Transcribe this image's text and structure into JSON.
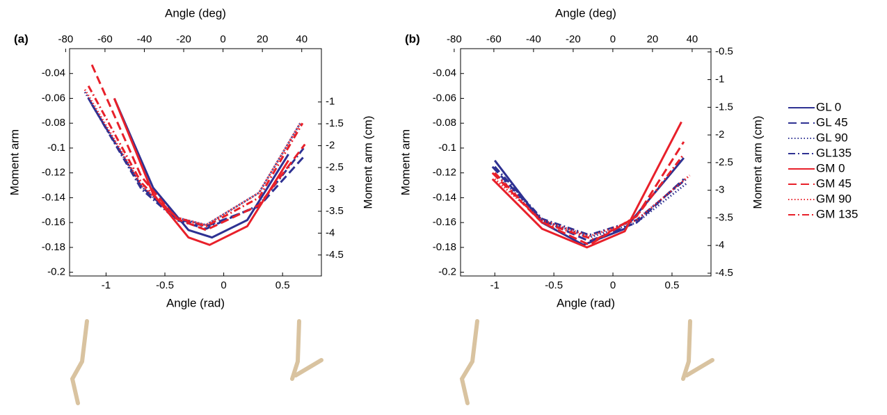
{
  "chart_data": [
    {
      "type": "line",
      "panel_label": "(a)",
      "xlabel": "Angle (rad)",
      "x2label": "Angle (deg)",
      "ylabel": "Moment arm",
      "y2label": "Moment arm (cm)",
      "xlim": [
        -1.31,
        0.83
      ],
      "xticks": [
        -1,
        -0.5,
        0,
        0.5
      ],
      "x2lim": [
        -78,
        50
      ],
      "x2ticks": [
        -80,
        -60,
        -40,
        -20,
        0,
        20,
        40
      ],
      "ylim": [
        -0.203,
        -0.02
      ],
      "yticks": [
        -0.2,
        -0.18,
        -0.16,
        -0.14,
        -0.12,
        -0.1,
        -0.08,
        -0.06,
        -0.04
      ],
      "y2lim": [
        -4.98,
        0.22
      ],
      "y2ticks": [
        -4.5,
        -4,
        -3.5,
        -3,
        -2.5,
        -2,
        -1.5,
        -1
      ],
      "series": [
        {
          "color": "#2e3192",
          "dash": "solid",
          "x": [
            -0.93,
            -0.6,
            -0.3,
            -0.1,
            0.2,
            0.55
          ],
          "values": [
            -0.06,
            -0.132,
            -0.166,
            -0.172,
            -0.158,
            -0.105
          ]
        },
        {
          "color": "#2e3192",
          "dash": "dashed",
          "x": [
            -1.12,
            -0.7,
            -0.4,
            -0.15,
            0.3,
            0.68
          ],
          "values": [
            -0.065,
            -0.131,
            -0.157,
            -0.163,
            -0.147,
            -0.107
          ]
        },
        {
          "color": "#2e3192",
          "dash": "dotted",
          "x": [
            -1.18,
            -0.7,
            -0.4,
            -0.15,
            0.3,
            0.65
          ],
          "values": [
            -0.055,
            -0.131,
            -0.156,
            -0.162,
            -0.136,
            -0.08
          ]
        },
        {
          "color": "#2e3192",
          "dash": "dashdot",
          "x": [
            -1.15,
            -0.7,
            -0.4,
            -0.15,
            0.3,
            0.68
          ],
          "values": [
            -0.06,
            -0.133,
            -0.158,
            -0.165,
            -0.146,
            -0.1
          ]
        },
        {
          "color": "#e8202a",
          "dash": "solid",
          "x": [
            -0.93,
            -0.6,
            -0.3,
            -0.12,
            0.2,
            0.55
          ],
          "values": [
            -0.06,
            -0.137,
            -0.172,
            -0.178,
            -0.163,
            -0.11
          ]
        },
        {
          "color": "#e8202a",
          "dash": "dashed",
          "x": [
            -1.12,
            -0.7,
            -0.4,
            -0.15,
            0.3,
            0.69
          ],
          "values": [
            -0.033,
            -0.123,
            -0.157,
            -0.166,
            -0.146,
            -0.097
          ]
        },
        {
          "color": "#e8202a",
          "dash": "dotted",
          "x": [
            -1.18,
            -0.7,
            -0.4,
            -0.15,
            0.3,
            0.65
          ],
          "values": [
            -0.053,
            -0.13,
            -0.156,
            -0.162,
            -0.136,
            -0.08
          ]
        },
        {
          "color": "#e8202a",
          "dash": "dashdot",
          "x": [
            -1.15,
            -0.7,
            -0.4,
            -0.15,
            0.3,
            0.67
          ],
          "values": [
            -0.05,
            -0.128,
            -0.156,
            -0.163,
            -0.14,
            -0.08
          ]
        }
      ]
    },
    {
      "type": "line",
      "panel_label": "(b)",
      "xlabel": "Angle (rad)",
      "x2label": "Angle (deg)",
      "ylabel": "Moment arm",
      "y2label": "Moment arm (cm)",
      "xlim": [
        -1.29,
        0.83
      ],
      "xticks": [
        -1,
        -0.5,
        0,
        0.5
      ],
      "x2lim": [
        -76.8,
        49.5
      ],
      "x2ticks": [
        -80,
        -60,
        -40,
        -20,
        0,
        20,
        40
      ],
      "ylim": [
        -0.203,
        -0.02
      ],
      "yticks": [
        -0.2,
        -0.18,
        -0.16,
        -0.14,
        -0.12,
        -0.1,
        -0.08,
        -0.06,
        -0.04
      ],
      "y2lim": [
        -4.55,
        -0.44
      ],
      "y2ticks": [
        -4.5,
        -4,
        -3.5,
        -3,
        -2.5,
        -2,
        -1.5,
        -1,
        -0.5
      ],
      "legend": "right",
      "series": [
        {
          "name": "GL 0",
          "color": "#2e3192",
          "dash": "solid",
          "x": [
            -1.0,
            -0.6,
            -0.25,
            0.1,
            0.6
          ],
          "values": [
            -0.11,
            -0.16,
            -0.178,
            -0.165,
            -0.108
          ]
        },
        {
          "name": "GL 45",
          "color": "#2e3192",
          "dash": "dashed",
          "x": [
            -1.02,
            -0.6,
            -0.2,
            0.2,
            0.6
          ],
          "values": [
            -0.115,
            -0.158,
            -0.175,
            -0.16,
            -0.125
          ]
        },
        {
          "name": "GL 90",
          "color": "#2e3192",
          "dash": "dotted",
          "x": [
            -1.0,
            -0.6,
            -0.2,
            0.2,
            0.63
          ],
          "values": [
            -0.12,
            -0.158,
            -0.172,
            -0.16,
            -0.128
          ]
        },
        {
          "name": "GL135",
          "color": "#2e3192",
          "dash": "dashdot",
          "x": [
            -1.0,
            -0.6,
            -0.2,
            0.2,
            0.62
          ],
          "values": [
            -0.115,
            -0.157,
            -0.17,
            -0.158,
            -0.125
          ]
        },
        {
          "name": "GM 0",
          "color": "#e8202a",
          "dash": "solid",
          "x": [
            -1.02,
            -0.6,
            -0.22,
            0.1,
            0.58
          ],
          "values": [
            -0.125,
            -0.165,
            -0.18,
            -0.167,
            -0.079
          ]
        },
        {
          "name": "GM 45",
          "color": "#e8202a",
          "dash": "dashed",
          "x": [
            -1.02,
            -0.6,
            -0.2,
            0.2,
            0.6
          ],
          "values": [
            -0.12,
            -0.16,
            -0.178,
            -0.155,
            -0.095
          ]
        },
        {
          "name": "GM 90",
          "color": "#e8202a",
          "dash": "dotted",
          "x": [
            -1.0,
            -0.6,
            -0.2,
            0.2,
            0.65
          ],
          "values": [
            -0.125,
            -0.158,
            -0.171,
            -0.158,
            -0.122
          ]
        },
        {
          "name": "GM 135",
          "color": "#e8202a",
          "dash": "dashdot",
          "x": [
            -1.0,
            -0.6,
            -0.15,
            0.2,
            0.6
          ],
          "values": [
            -0.12,
            -0.16,
            -0.174,
            -0.155,
            -0.105
          ]
        }
      ]
    }
  ]
}
